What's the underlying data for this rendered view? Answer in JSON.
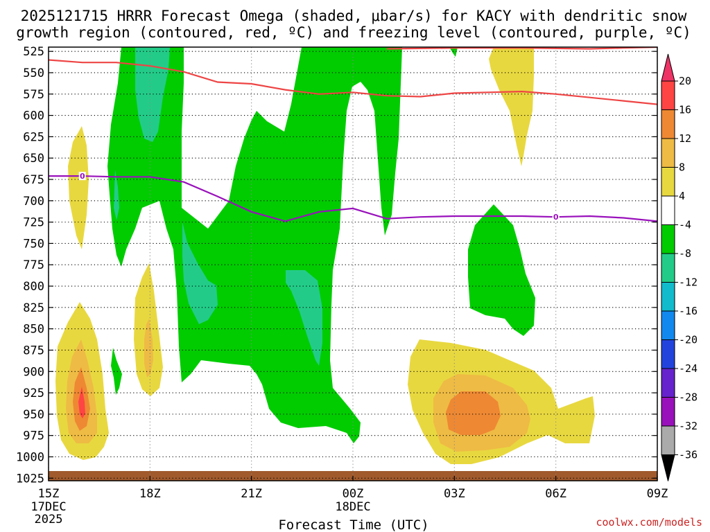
{
  "chart_data": {
    "type": "time-height",
    "title_line1": "2025121715 HRRR Forecast Omega (shaded, μbar/s) for KACY with dendritic snow",
    "title_line2": "growth region (contoured, red, ºC) and freezing level (contoured, purple, ºC)",
    "xlabel": "Forecast Time (UTC)",
    "credit": "coolwx.com/models",
    "x_range_hours": [
      0,
      18
    ],
    "x_ticks": [
      {
        "hour": 0,
        "label": "15Z",
        "sub": [
          "17DEC",
          "2025"
        ]
      },
      {
        "hour": 3,
        "label": "18Z",
        "sub": []
      },
      {
        "hour": 6,
        "label": "21Z",
        "sub": []
      },
      {
        "hour": 9,
        "label": "00Z",
        "sub": [
          "18DEC"
        ]
      },
      {
        "hour": 12,
        "label": "03Z",
        "sub": []
      },
      {
        "hour": 15,
        "label": "06Z",
        "sub": []
      },
      {
        "hour": 18,
        "label": "09Z",
        "sub": []
      }
    ],
    "y_range_hpa": [
      520,
      1028
    ],
    "y_ticks": [
      "525",
      "550",
      "575",
      "600",
      "625",
      "650",
      "675",
      "700",
      "725",
      "750",
      "775",
      "800",
      "825",
      "850",
      "875",
      "900",
      "925",
      "950",
      "975",
      "1000",
      "1025"
    ],
    "colorbar": {
      "labels": [
        "20",
        "16",
        "12",
        "8",
        "4",
        "-4",
        "-8",
        "-12",
        "-16",
        "-20",
        "-24",
        "-28",
        "-32",
        "-36"
      ],
      "colors": [
        "#ee3366",
        "#ff4444",
        "#ee8833",
        "#eebb44",
        "#e8d840",
        "#ffffff",
        "#00cc00",
        "#22cc88",
        "#11bbcc",
        "#1188ee",
        "#2244dd",
        "#6622cc",
        "#9911bb",
        "#aaaaaa",
        "#000000"
      ]
    },
    "freezing_level": {
      "label": "0",
      "color": "#9911bb",
      "hours": [
        0,
        1,
        2,
        3,
        4,
        5,
        6,
        7,
        8,
        9,
        10,
        11,
        12,
        13,
        14,
        15,
        16,
        17,
        18
      ],
      "hpa": [
        671,
        671,
        672,
        672,
        678,
        695,
        713,
        724,
        713,
        709,
        721,
        719,
        718,
        718,
        718,
        719,
        718,
        720,
        724
      ]
    },
    "dgz_top": {
      "color": "#ee4444",
      "hours": [
        0,
        1,
        2,
        3,
        4,
        5,
        6,
        7,
        8,
        9,
        10,
        11,
        12,
        13,
        14,
        15,
        16,
        17,
        18
      ],
      "hpa": [
        535,
        538,
        538,
        542,
        549,
        561,
        563,
        570,
        575,
        573,
        577,
        578,
        574,
        573,
        572,
        575,
        579,
        583,
        587
      ]
    },
    "dgz_bottom_top": {
      "color": "#ee4444",
      "hours": [
        10,
        12,
        14,
        16,
        17,
        18
      ],
      "hpa": [
        522,
        521,
        521,
        522,
        521,
        520
      ]
    },
    "omega_regions": [
      {
        "name": "green-main-ascent",
        "value": -6
      },
      {
        "name": "teal-ascent-upper",
        "value": -10
      },
      {
        "name": "teal-ascent-mid-left",
        "value": -10
      },
      {
        "name": "teal-ascent-mid-right",
        "value": -10
      },
      {
        "name": "teal-ascent-small",
        "value": -10
      },
      {
        "name": "green-ascent-right",
        "value": -6
      },
      {
        "name": "green-ascent-small",
        "value": -6
      },
      {
        "name": "green-ascent-top",
        "value": -6
      },
      {
        "name": "yellow-descent-lowleft",
        "value": 6
      },
      {
        "name": "orange-descent-lowleft",
        "value": 10
      },
      {
        "name": "darkorange-descent-lowleft",
        "value": 14
      },
      {
        "name": "red-descent-lowleft",
        "value": 18
      },
      {
        "name": "yellow-descent-upperleft",
        "value": 6
      },
      {
        "name": "yellow-descent-column",
        "value": 6
      },
      {
        "name": "orange-descent-column",
        "value": 10
      },
      {
        "name": "yellow-descent-lowright",
        "value": 6
      },
      {
        "name": "orange-descent-lowright",
        "value": 10
      },
      {
        "name": "darkorange-descent-lowright",
        "value": 14
      },
      {
        "name": "yellow-descent-upperright",
        "value": 6
      }
    ]
  }
}
